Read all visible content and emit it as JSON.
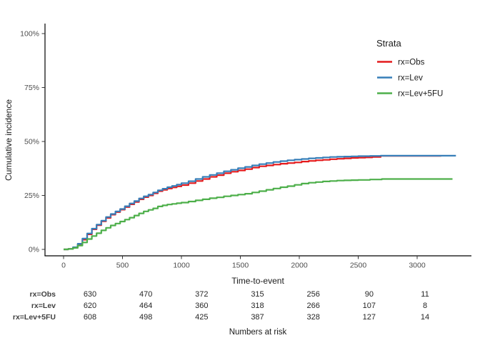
{
  "figure": {
    "y_axis": {
      "title": "Cumulative incidence",
      "ticks": [
        {
          "value": 0,
          "label": "0%"
        },
        {
          "value": 25,
          "label": "25%"
        },
        {
          "value": 50,
          "label": "50%"
        },
        {
          "value": 75,
          "label": "75%"
        },
        {
          "value": 100,
          "label": "100%"
        }
      ]
    },
    "x_axis": {
      "title": "Time-to-event",
      "ticks": [
        {
          "value": 0,
          "label": "0"
        },
        {
          "value": 500,
          "label": "500"
        },
        {
          "value": 1000,
          "label": "1000"
        },
        {
          "value": 1500,
          "label": "1500"
        },
        {
          "value": 2000,
          "label": "2000"
        },
        {
          "value": 2500,
          "label": "2500"
        },
        {
          "value": 3000,
          "label": "3000"
        }
      ]
    },
    "legend": {
      "title": "Strata",
      "entries": [
        {
          "label": "rx=Obs",
          "color": "#E41A1C"
        },
        {
          "label": "rx=Lev",
          "color": "#377EB8"
        },
        {
          "label": "rx=Lev+5FU",
          "color": "#4DAF4A"
        }
      ]
    },
    "risk_table": {
      "title": "Numbers at risk",
      "times": [
        0,
        500,
        1000,
        1500,
        2000,
        2500,
        3000
      ],
      "rows": [
        {
          "label": "rx=Obs",
          "values": [
            630,
            470,
            372,
            315,
            256,
            90,
            11
          ]
        },
        {
          "label": "rx=Lev",
          "values": [
            620,
            464,
            360,
            318,
            266,
            107,
            8
          ]
        },
        {
          "label": "rx=Lev+5FU",
          "values": [
            608,
            498,
            425,
            387,
            328,
            127,
            14
          ]
        }
      ]
    }
  },
  "chart_data": {
    "type": "line",
    "subtype": "step-function-cumulative-incidence",
    "title": "",
    "xlabel": "Time-to-event",
    "ylabel": "Cumulative incidence",
    "xlim": [
      0,
      3450
    ],
    "ylim_percent": [
      0,
      100
    ],
    "x_ticks": [
      0,
      500,
      1000,
      1500,
      2000,
      2500,
      3000
    ],
    "y_ticks_percent": [
      0,
      25,
      50,
      75,
      100
    ],
    "grid": false,
    "legend_position": "right",
    "series": [
      {
        "name": "rx=Obs",
        "color": "#E41A1C",
        "points": [
          [
            0,
            0
          ],
          [
            40,
            0.2
          ],
          [
            80,
            0.8
          ],
          [
            120,
            2.2
          ],
          [
            160,
            4.5
          ],
          [
            200,
            7
          ],
          [
            240,
            9.3
          ],
          [
            280,
            11.2
          ],
          [
            320,
            13
          ],
          [
            360,
            14.6
          ],
          [
            400,
            16.1
          ],
          [
            440,
            17.3
          ],
          [
            480,
            18.4
          ],
          [
            520,
            19.6
          ],
          [
            560,
            20.9
          ],
          [
            600,
            22
          ],
          [
            640,
            23.2
          ],
          [
            680,
            24.2
          ],
          [
            720,
            25
          ],
          [
            760,
            26
          ],
          [
            800,
            27
          ],
          [
            840,
            27.6
          ],
          [
            880,
            28.2
          ],
          [
            920,
            28.7
          ],
          [
            960,
            29.2
          ],
          [
            1000,
            29.8
          ],
          [
            1060,
            30.7
          ],
          [
            1120,
            31.7
          ],
          [
            1180,
            32.6
          ],
          [
            1240,
            33.6
          ],
          [
            1300,
            34.4
          ],
          [
            1360,
            35.3
          ],
          [
            1420,
            36
          ],
          [
            1480,
            36.6
          ],
          [
            1540,
            37.2
          ],
          [
            1600,
            37.9
          ],
          [
            1660,
            38.5
          ],
          [
            1720,
            38.9
          ],
          [
            1780,
            39.3
          ],
          [
            1840,
            39.7
          ],
          [
            1900,
            40
          ],
          [
            1960,
            40.3
          ],
          [
            2020,
            40.7
          ],
          [
            2080,
            41
          ],
          [
            2140,
            41.3
          ],
          [
            2200,
            41.5
          ],
          [
            2260,
            41.8
          ],
          [
            2320,
            42
          ],
          [
            2380,
            42.2
          ],
          [
            2440,
            42.4
          ],
          [
            2500,
            42.5
          ],
          [
            2560,
            42.6
          ],
          [
            2620,
            42.8
          ],
          [
            2690,
            43.3
          ],
          [
            3200,
            43.4
          ]
        ]
      },
      {
        "name": "rx=Lev",
        "color": "#377EB8",
        "points": [
          [
            0,
            0
          ],
          [
            40,
            0.2
          ],
          [
            80,
            1
          ],
          [
            120,
            2.6
          ],
          [
            160,
            5
          ],
          [
            200,
            7.4
          ],
          [
            240,
            9.6
          ],
          [
            280,
            11.5
          ],
          [
            320,
            13.3
          ],
          [
            360,
            15
          ],
          [
            400,
            16.4
          ],
          [
            440,
            17.6
          ],
          [
            480,
            18.7
          ],
          [
            520,
            20
          ],
          [
            560,
            21.3
          ],
          [
            600,
            22.4
          ],
          [
            640,
            23.6
          ],
          [
            680,
            24.6
          ],
          [
            720,
            25.4
          ],
          [
            760,
            26.4
          ],
          [
            800,
            27.4
          ],
          [
            840,
            28.1
          ],
          [
            880,
            28.8
          ],
          [
            920,
            29.4
          ],
          [
            960,
            30
          ],
          [
            1000,
            30.7
          ],
          [
            1060,
            31.6
          ],
          [
            1120,
            32.6
          ],
          [
            1180,
            33.6
          ],
          [
            1240,
            34.5
          ],
          [
            1300,
            35.3
          ],
          [
            1360,
            36.2
          ],
          [
            1420,
            36.9
          ],
          [
            1480,
            37.6
          ],
          [
            1540,
            38.2
          ],
          [
            1600,
            38.9
          ],
          [
            1660,
            39.5
          ],
          [
            1720,
            40
          ],
          [
            1780,
            40.5
          ],
          [
            1840,
            40.9
          ],
          [
            1900,
            41.3
          ],
          [
            1960,
            41.6
          ],
          [
            2020,
            41.9
          ],
          [
            2080,
            42.2
          ],
          [
            2140,
            42.4
          ],
          [
            2200,
            42.6
          ],
          [
            2260,
            42.8
          ],
          [
            2320,
            42.9
          ],
          [
            2380,
            43
          ],
          [
            2440,
            43.1
          ],
          [
            2500,
            43.2
          ],
          [
            2600,
            43.3
          ],
          [
            2690,
            43.4
          ],
          [
            3329,
            43.4
          ]
        ]
      },
      {
        "name": "rx=Lev+5FU",
        "color": "#4DAF4A",
        "points": [
          [
            0,
            0
          ],
          [
            40,
            0.2
          ],
          [
            80,
            0.7
          ],
          [
            120,
            1.8
          ],
          [
            160,
            3.2
          ],
          [
            200,
            4.8
          ],
          [
            240,
            6.2
          ],
          [
            280,
            7.5
          ],
          [
            320,
            8.8
          ],
          [
            360,
            10
          ],
          [
            400,
            11.1
          ],
          [
            440,
            12
          ],
          [
            480,
            12.9
          ],
          [
            520,
            13.8
          ],
          [
            560,
            14.7
          ],
          [
            600,
            15.7
          ],
          [
            640,
            16.7
          ],
          [
            680,
            17.6
          ],
          [
            720,
            18.3
          ],
          [
            760,
            19
          ],
          [
            800,
            19.9
          ],
          [
            840,
            20.4
          ],
          [
            880,
            20.8
          ],
          [
            920,
            21.1
          ],
          [
            960,
            21.4
          ],
          [
            1000,
            21.7
          ],
          [
            1060,
            22.2
          ],
          [
            1120,
            22.7
          ],
          [
            1180,
            23.2
          ],
          [
            1240,
            23.7
          ],
          [
            1300,
            24.1
          ],
          [
            1360,
            24.6
          ],
          [
            1420,
            25
          ],
          [
            1480,
            25.4
          ],
          [
            1540,
            25.8
          ],
          [
            1600,
            26.4
          ],
          [
            1660,
            27
          ],
          [
            1720,
            27.6
          ],
          [
            1780,
            28.2
          ],
          [
            1840,
            28.8
          ],
          [
            1900,
            29.3
          ],
          [
            1960,
            29.9
          ],
          [
            2020,
            30.5
          ],
          [
            2080,
            30.9
          ],
          [
            2140,
            31.2
          ],
          [
            2200,
            31.5
          ],
          [
            2260,
            31.7
          ],
          [
            2320,
            31.9
          ],
          [
            2380,
            32
          ],
          [
            2440,
            32.1
          ],
          [
            2500,
            32.2
          ],
          [
            2600,
            32.4
          ],
          [
            2700,
            32.6
          ],
          [
            3300,
            32.6
          ]
        ]
      }
    ],
    "risk_table": {
      "title": "Numbers at risk",
      "times": [
        0,
        500,
        1000,
        1500,
        2000,
        2500,
        3000
      ],
      "rows": [
        {
          "label": "rx=Obs",
          "values": [
            630,
            470,
            372,
            315,
            256,
            90,
            11
          ]
        },
        {
          "label": "rx=Lev",
          "values": [
            620,
            464,
            360,
            318,
            266,
            107,
            8
          ]
        },
        {
          "label": "rx=Lev+5FU",
          "values": [
            608,
            498,
            425,
            387,
            328,
            127,
            14
          ]
        }
      ]
    }
  }
}
